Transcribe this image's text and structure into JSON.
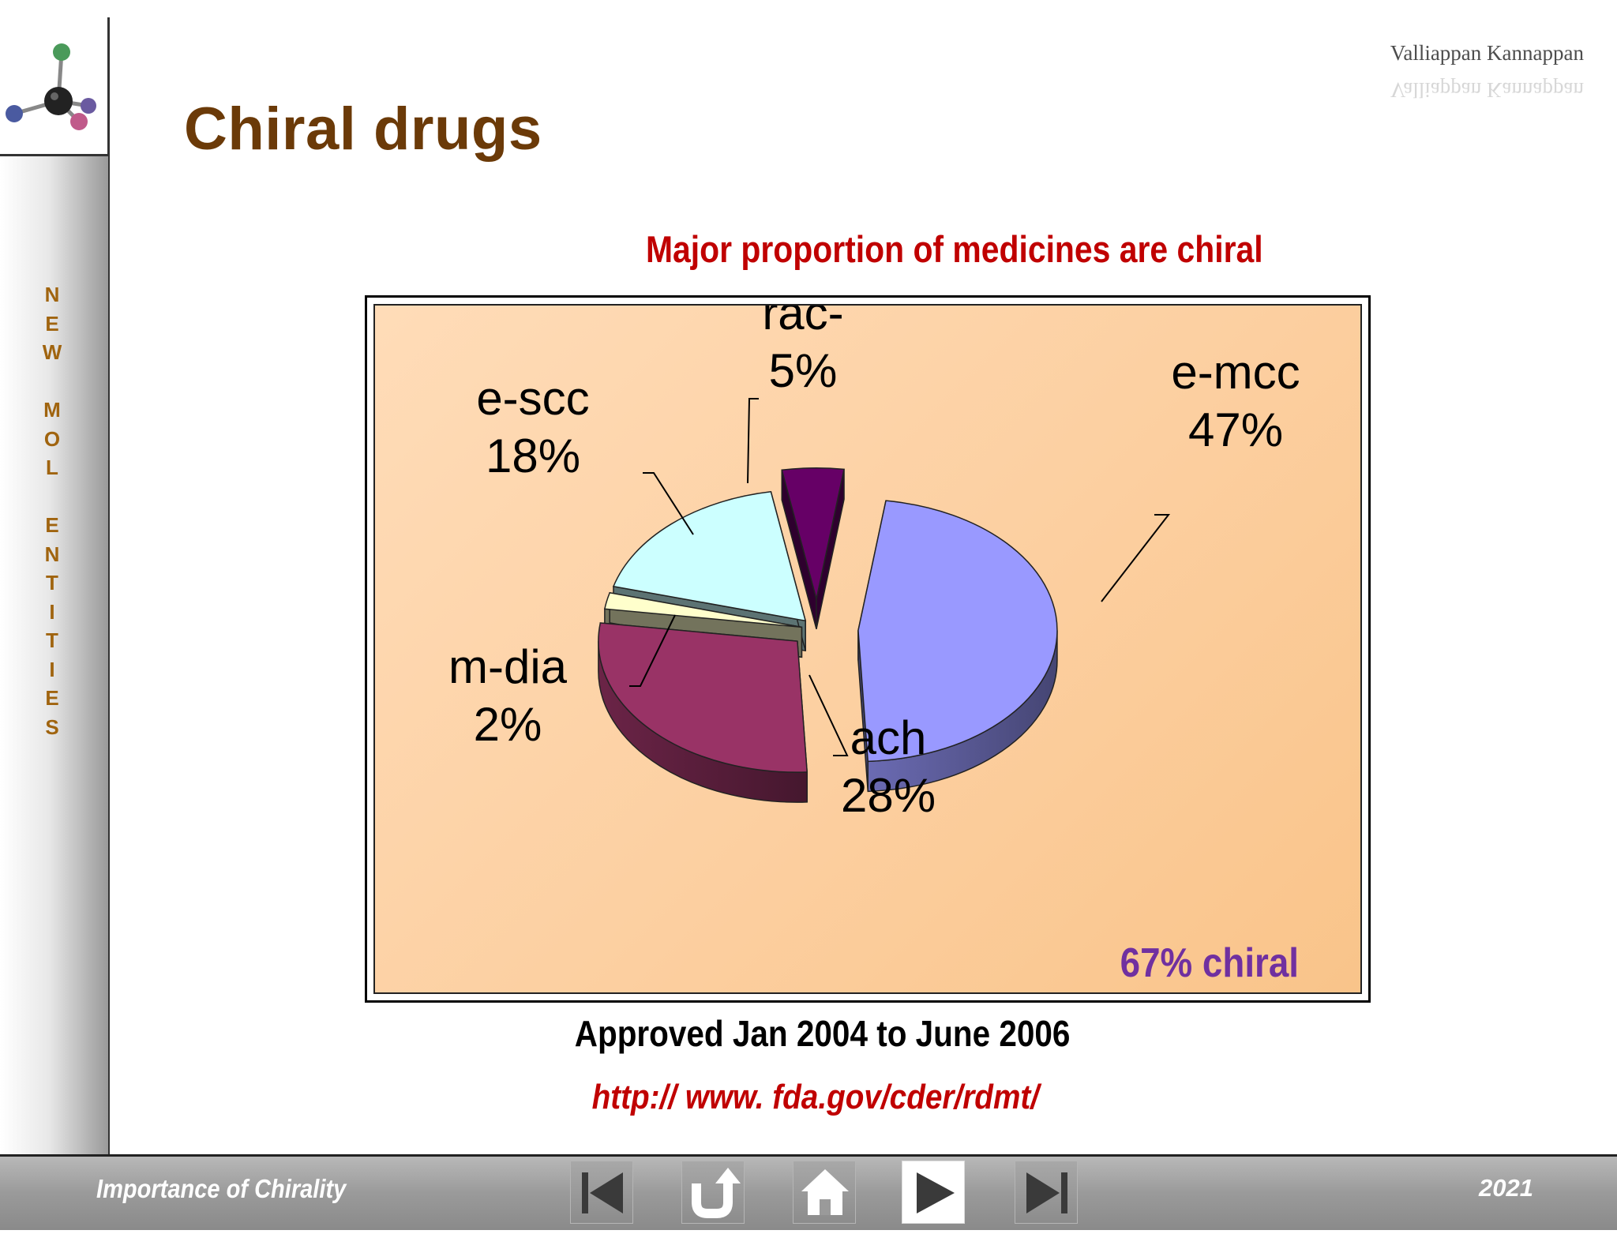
{
  "header": {
    "author": "Valliappan Kannappan",
    "title": "Chiral drugs"
  },
  "sidebar": {
    "vertical_text": [
      "N",
      "E",
      "W",
      "",
      "M",
      "O",
      "L",
      "",
      "E",
      "N",
      "T",
      "I",
      "T",
      "I",
      "E",
      "S"
    ]
  },
  "chart_data": {
    "type": "pie",
    "title": "Major proportion of medicines are chiral",
    "slices": [
      {
        "label": "e-mcc",
        "value": 47,
        "value_label": "47%",
        "color": "#9999ff"
      },
      {
        "label": "ach",
        "value": 28,
        "value_label": "28%",
        "color": "#993366"
      },
      {
        "label": "m-dia",
        "value": 2,
        "value_label": "2%",
        "color": "#ffffcc"
      },
      {
        "label": "e-scc",
        "value": 18,
        "value_label": "18%",
        "color": "#ccffff"
      },
      {
        "label": "rac-",
        "value": 5,
        "value_label": "5%",
        "color": "#660066"
      }
    ],
    "annotation": "67% chiral",
    "annotation_color": "#7030a0",
    "exploded": true,
    "style": "3d"
  },
  "caption": "Approved Jan 2004 to June 2006",
  "source": "http:// www. fda.gov/cder/rdmt/",
  "footer": {
    "title": "Importance of Chirality",
    "year": "2021",
    "nav": [
      {
        "name": "first-slide-button",
        "icon": "skip-to-first-icon"
      },
      {
        "name": "return-button",
        "icon": "return-arrow-icon"
      },
      {
        "name": "home-button",
        "icon": "home-icon"
      },
      {
        "name": "next-slide-button",
        "icon": "play-next-icon"
      },
      {
        "name": "last-slide-button",
        "icon": "skip-to-last-icon"
      }
    ]
  }
}
